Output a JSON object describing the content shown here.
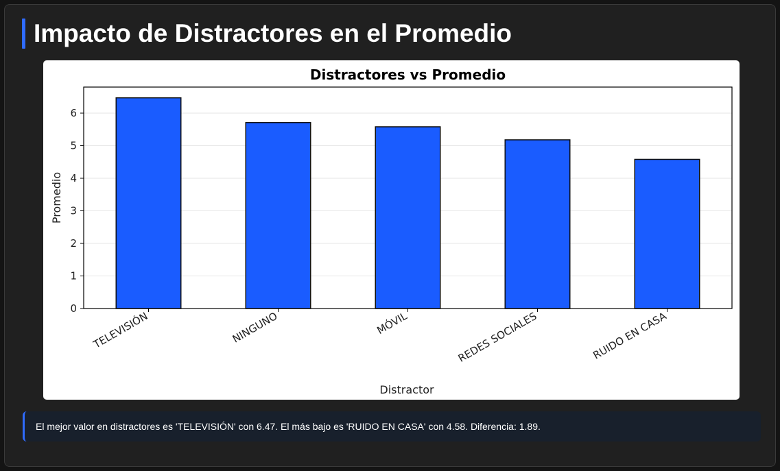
{
  "header": {
    "title": "Impacto de Distractores en el Promedio"
  },
  "accent_color": "#2f6bff",
  "chart_data": {
    "type": "bar",
    "title": "Distractores vs Promedio",
    "xlabel": "Distractor",
    "ylabel": "Promedio",
    "categories": [
      "TELEVISIÓN",
      "NINGUNO",
      "MÓVIL",
      "REDES SOCIALES",
      "RUIDO EN CASA"
    ],
    "values": [
      6.47,
      5.71,
      5.58,
      5.18,
      4.58
    ],
    "ylim": [
      0,
      6.8
    ],
    "yticks": [
      "0",
      "1",
      "2",
      "3",
      "4",
      "5",
      "6"
    ],
    "bar_color": "#1a5cff",
    "grid": "y"
  },
  "insight": {
    "text": "El mejor valor en distractores es 'TELEVISIÓN' con 6.47. El más bajo es 'RUIDO EN CASA' con 4.58. Diferencia: 1.89."
  }
}
